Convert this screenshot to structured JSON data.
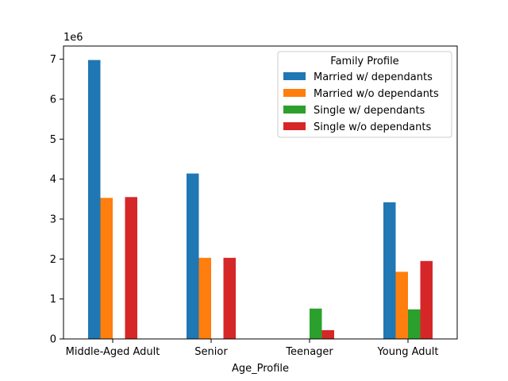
{
  "chart_data": {
    "type": "bar",
    "categories": [
      "Middle-Aged Adult",
      "Senior",
      "Teenager",
      "Young Adult"
    ],
    "series": [
      {
        "name": "Married w/ dependants",
        "color": "#1f77b4",
        "values": [
          6980000,
          4140000,
          0,
          3420000
        ]
      },
      {
        "name": "Married w/o dependants",
        "color": "#ff7f0e",
        "values": [
          3530000,
          2030000,
          0,
          1680000
        ]
      },
      {
        "name": "Single w/ dependants",
        "color": "#2ca02c",
        "values": [
          0,
          0,
          760000,
          740000
        ]
      },
      {
        "name": "Single w/o dependants",
        "color": "#d62728",
        "values": [
          3550000,
          2030000,
          220000,
          1950000
        ]
      }
    ],
    "title": "",
    "xlabel": "Age_Profile",
    "ylabel": "",
    "y_offset_label": "1e6",
    "ylim": [
      0,
      7330000
    ],
    "y_ticks": [
      0,
      1,
      2,
      3,
      4,
      5,
      6,
      7
    ],
    "y_tick_multiplier": 1000000,
    "grid": false,
    "legend": {
      "title": "Family Profile",
      "placement": "top-right"
    }
  }
}
